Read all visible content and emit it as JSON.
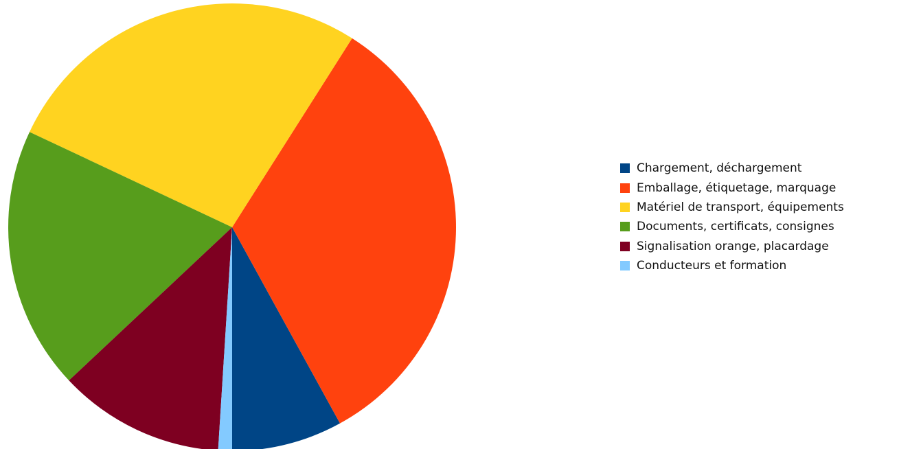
{
  "chart_data": {
    "type": "pie",
    "categories": [
      "Chargement, déchargement",
      "Emballage, étiquetage, marquage",
      "Matériel de transport, équipements",
      "Documents, certificats, consignes",
      "Signalisation orange, placardage",
      "Conducteurs et formation"
    ],
    "values": [
      8,
      33,
      27,
      19,
      12,
      1
    ],
    "colors": [
      "#004586",
      "#ff420e",
      "#ffd320",
      "#579d1c",
      "#7e0021",
      "#83caff"
    ],
    "title": "",
    "legend_position": "right"
  }
}
